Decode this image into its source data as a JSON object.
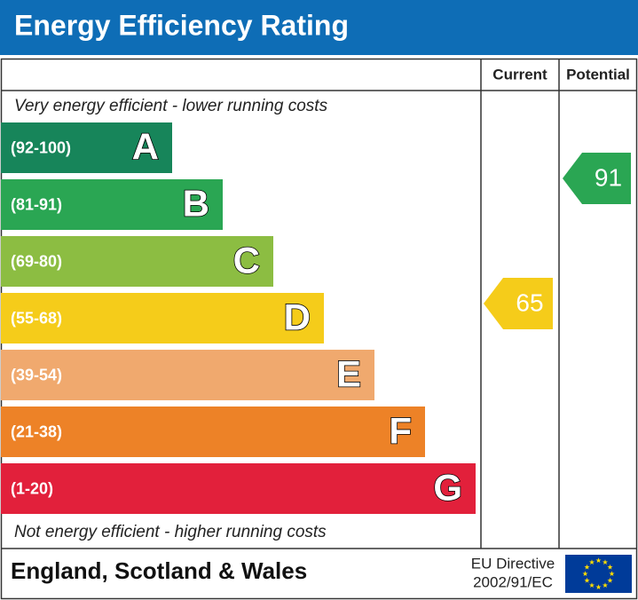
{
  "chart_data": {
    "type": "epc",
    "title": "Energy Efficiency Rating",
    "columns": [
      "Current",
      "Potential"
    ],
    "top_note": "Very energy efficient - lower running costs",
    "bottom_note": "Not energy efficient - higher running costs",
    "bands": [
      {
        "range": "(92-100)",
        "letter": "A",
        "color": "#17855a"
      },
      {
        "range": "(81-91)",
        "letter": "B",
        "color": "#2aa653"
      },
      {
        "range": "(69-80)",
        "letter": "C",
        "color": "#8cbd42"
      },
      {
        "range": "(55-68)",
        "letter": "D",
        "color": "#f5cc1a"
      },
      {
        "range": "(39-54)",
        "letter": "E",
        "color": "#f0a96e"
      },
      {
        "range": "(21-38)",
        "letter": "F",
        "color": "#ed8227"
      },
      {
        "range": "(1-20)",
        "letter": "G",
        "color": "#e2203b"
      }
    ],
    "current": 65,
    "potential": 91,
    "footer": "England, Scotland & Wales",
    "directive": [
      "EU Directive",
      "2002/91/EC"
    ]
  }
}
